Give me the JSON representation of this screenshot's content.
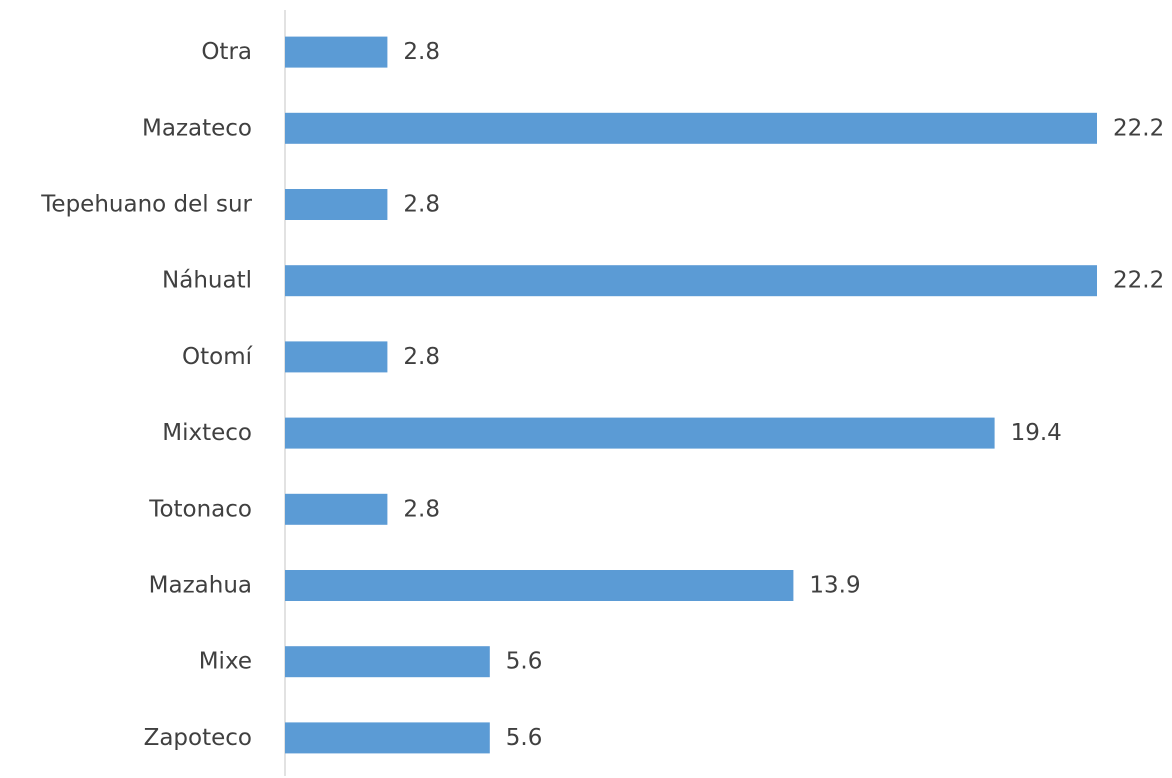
{
  "chart_data": {
    "type": "bar",
    "orientation": "horizontal",
    "categories": [
      "Otra",
      "Mazateco",
      "Tepehuano del sur",
      "Náhuatl",
      "Otomí",
      "Mixteco",
      "Totonaco",
      "Mazahua",
      "Mixe",
      "Zapoteco"
    ],
    "values": [
      2.8,
      22.2,
      2.8,
      22.2,
      2.8,
      19.4,
      2.8,
      13.9,
      5.6,
      5.6
    ],
    "value_labels": [
      "2.8",
      "22.2",
      "2.8",
      "22.2",
      "2.8",
      "19.4",
      "2.8",
      "13.9",
      "5.6",
      "5.6"
    ],
    "xlim": [
      0,
      22.2
    ],
    "grid": false,
    "legend": "none",
    "bar_color": "#5B9BD5",
    "axis_color": "#D9D9D9",
    "text_color": "#404040"
  }
}
